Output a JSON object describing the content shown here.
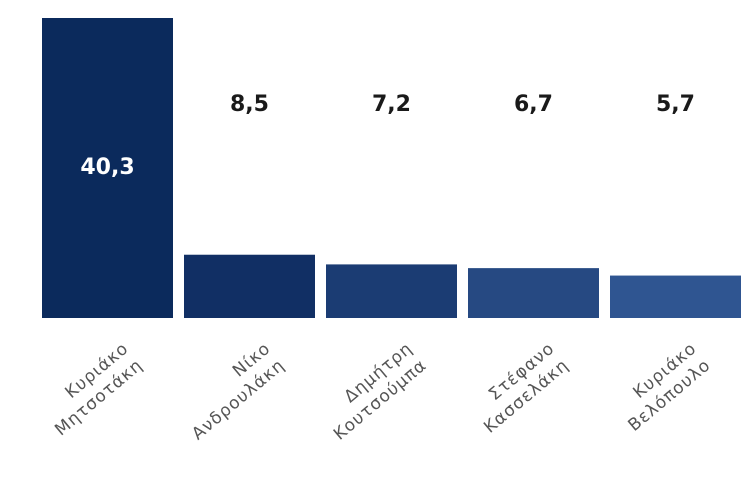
{
  "chart_data": {
    "type": "bar",
    "categories": [
      "Κυριάκο Μητσοτάκη",
      "Νίκο Ανδρουλάκη",
      "Δημήτρη Κουτσούμπα",
      "Στέφανο Κασσελάκη",
      "Κυριάκο Βελόπουλο"
    ],
    "values": [
      40.3,
      8.5,
      7.2,
      6.7,
      5.7
    ],
    "value_labels": [
      "40,3",
      "8,5",
      "7,2",
      "6,7",
      "5,7"
    ],
    "colors": [
      "#0b2a5c",
      "#112f64",
      "#1b3c73",
      "#264982",
      "#2f5591"
    ]
  }
}
